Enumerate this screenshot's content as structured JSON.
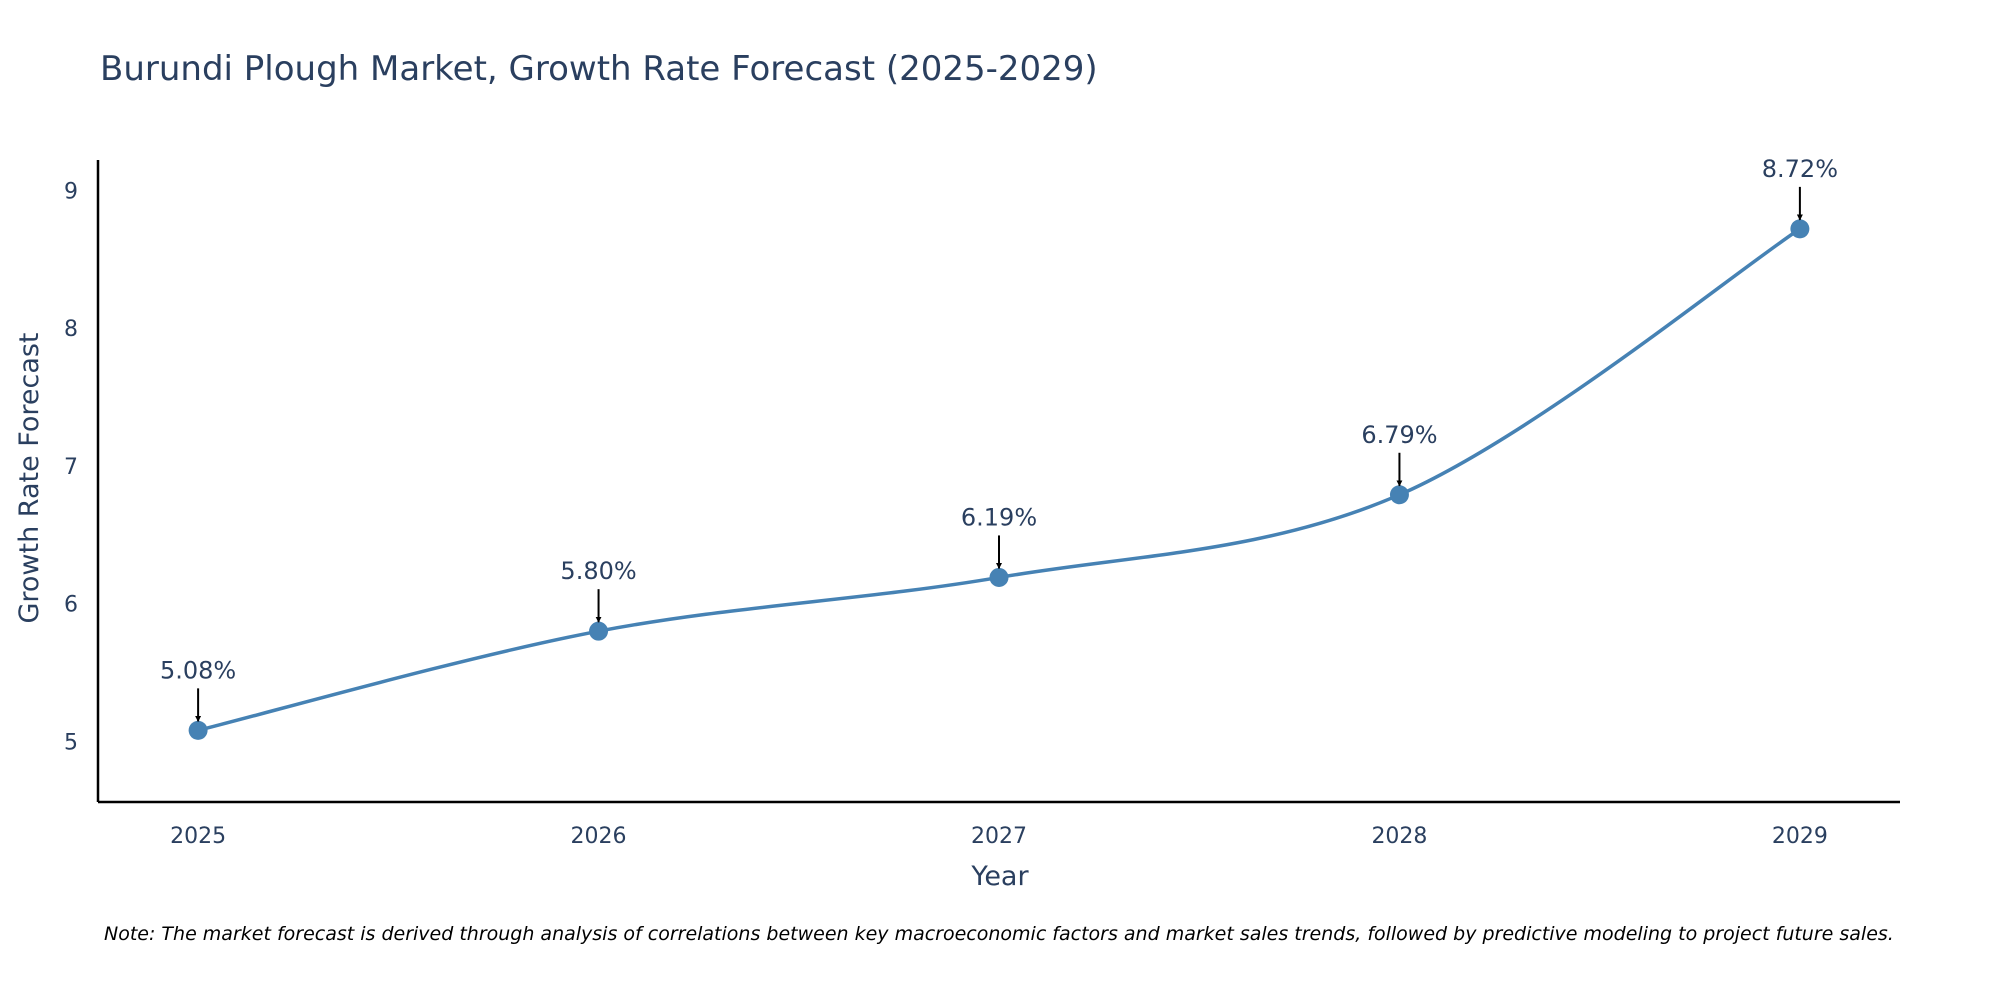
{
  "chart_data": {
    "type": "line",
    "title": "Burundi Plough Market, Growth Rate Forecast (2025-2029)",
    "xlabel": "Year",
    "ylabel": "Growth Rate Forecast",
    "x": [
      2025,
      2026,
      2027,
      2028,
      2029
    ],
    "x_tick_labels": [
      "2025",
      "2026",
      "2027",
      "2028",
      "2029"
    ],
    "y_ticks": [
      5,
      6,
      7,
      8,
      9
    ],
    "y_tick_labels": [
      "5",
      "6",
      "7",
      "8",
      "9"
    ],
    "xlim": [
      2024.75,
      2029.25
    ],
    "ylim": [
      4.56,
      9.22
    ],
    "series": [
      {
        "name": "Growth Rate Forecast",
        "values": [
          5.08,
          5.8,
          6.19,
          6.79,
          8.72
        ],
        "labels": [
          "5.08%",
          "5.80%",
          "6.19%",
          "6.79%",
          "8.72%"
        ],
        "color": "#4682b4",
        "line_shape": "spline"
      }
    ],
    "annotation_color": "#000000",
    "grid": false,
    "note": "Note: The market forecast is derived through analysis of correlations between key macroeconomic factors and market sales trends, followed by predictive modeling to project future sales."
  }
}
